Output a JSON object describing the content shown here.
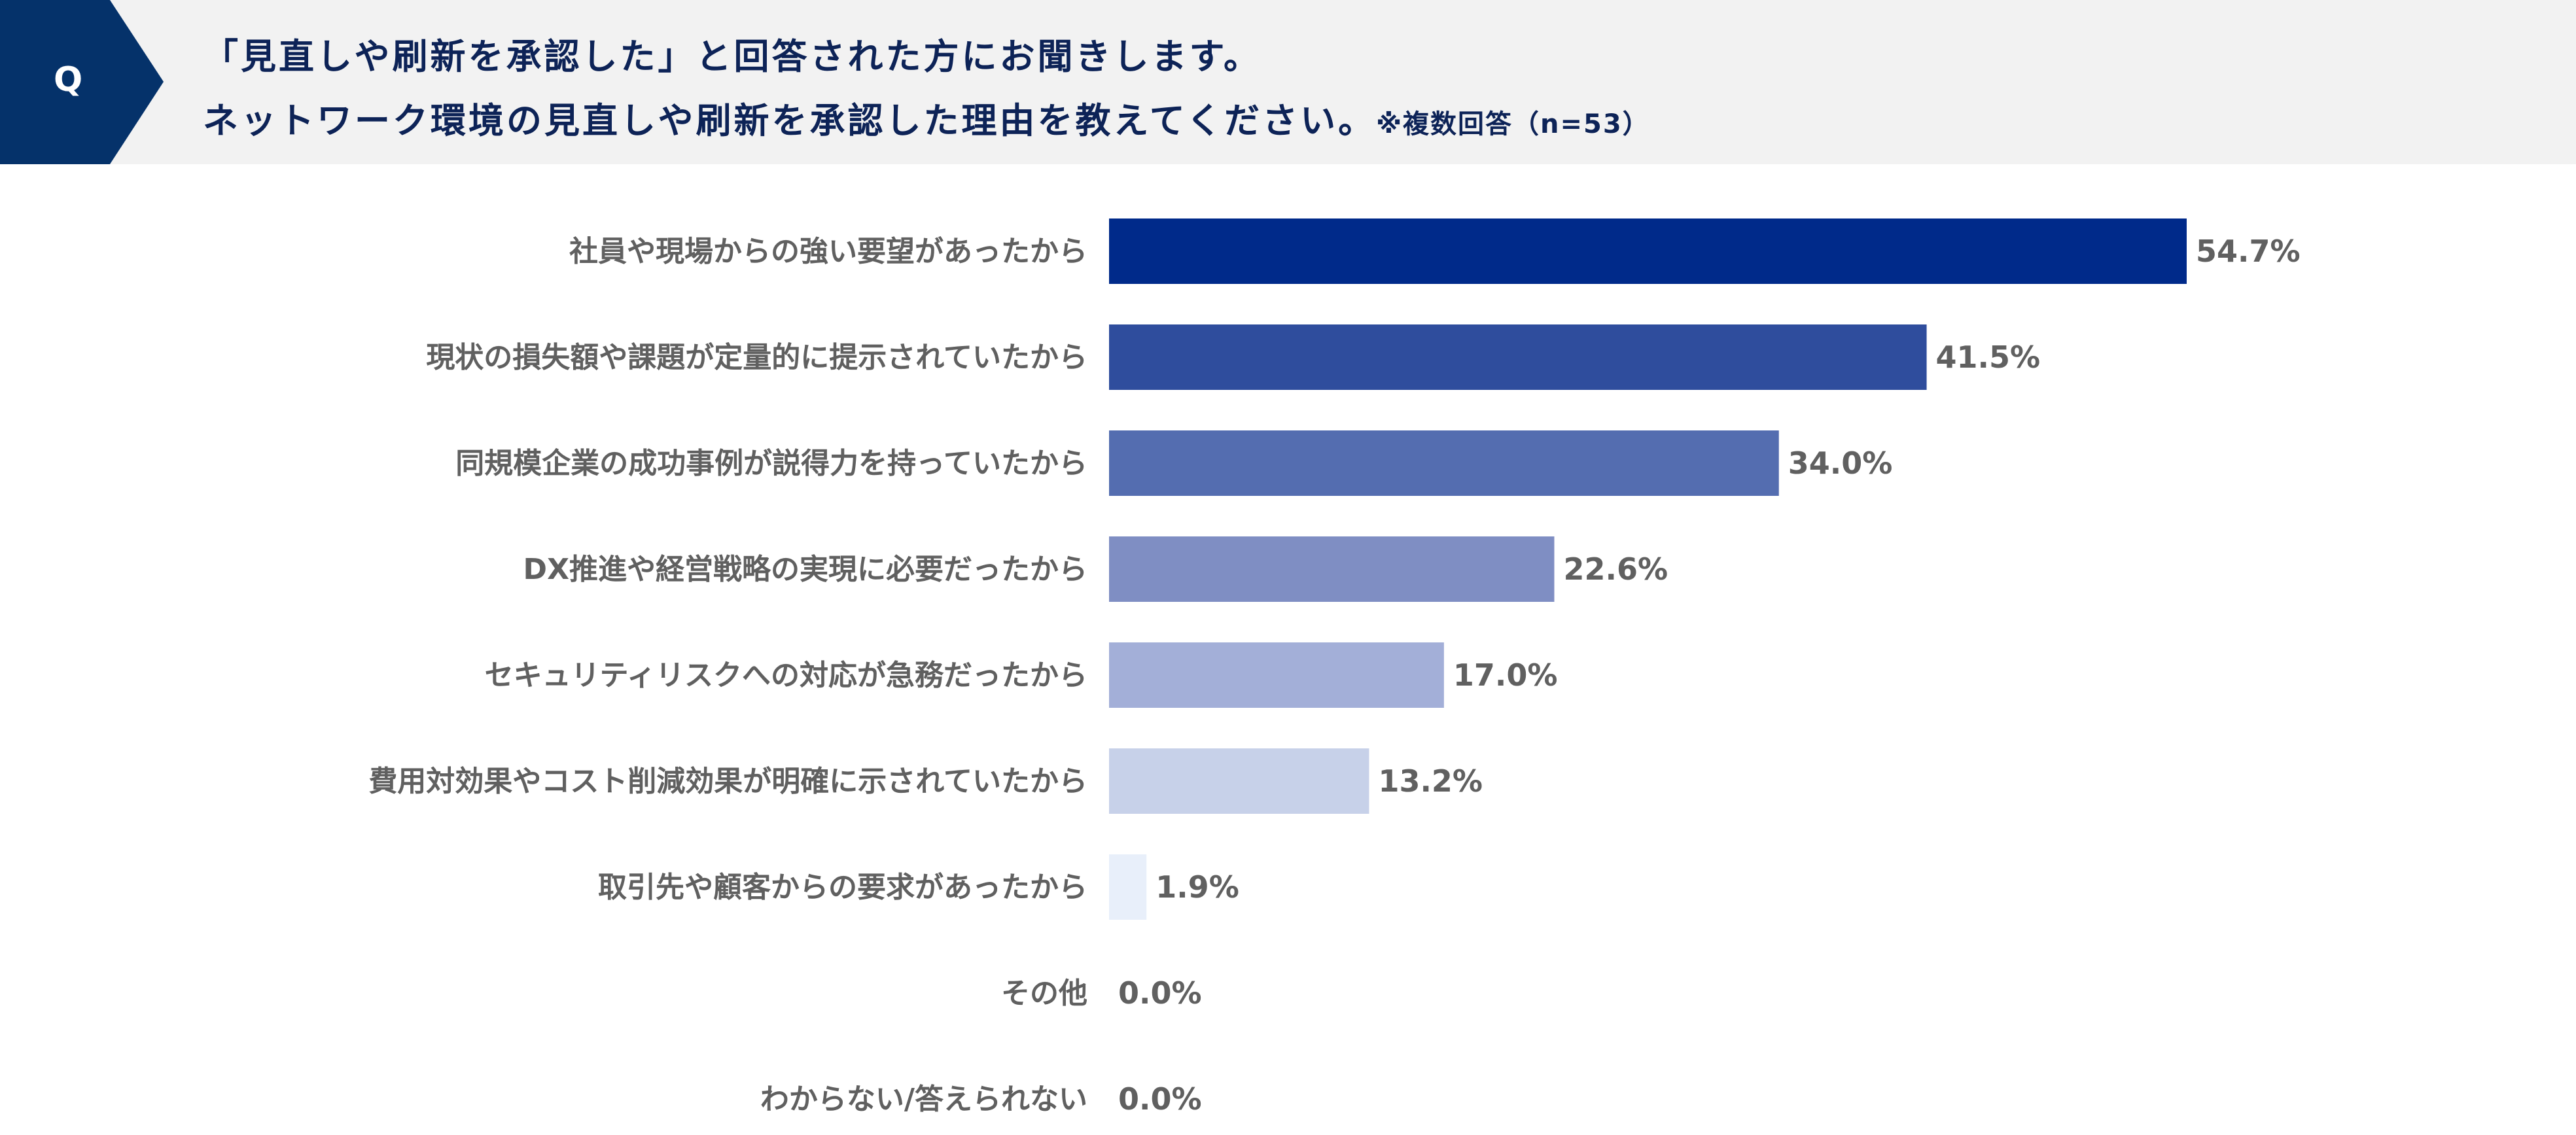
{
  "header": {
    "q_label": "Q",
    "title_line1": "「見直しや刷新を承認した」と回答された方にお聞きします。",
    "title_line2": "ネットワーク環境の見直しや刷新を承認した理由を教えてください。",
    "note": "※複数回答（n=53）"
  },
  "chart_data": {
    "type": "bar",
    "orientation": "horizontal",
    "categories": [
      "社員や現場からの強い要望があったから",
      "現状の損失額や課題が定量的に提示されていたから",
      "同規模企業の成功事例が説得力を持っていたから",
      "DX推進や経営戦略の実現に必要だったから",
      "セキュリティリスクへの対応が急務だったから",
      "費用対効果やコスト削減効果が明確に示されていたから",
      "取引先や顧客からの要求があったから",
      "その他",
      "わからない/答えられない"
    ],
    "values": [
      54.7,
      41.5,
      34.0,
      22.6,
      17.0,
      13.2,
      1.9,
      0.0,
      0.0
    ],
    "value_labels": [
      "54.7%",
      "41.5%",
      "34.0%",
      "22.6%",
      "17.0%",
      "13.2%",
      "1.9%",
      "0.0%",
      "0.0%"
    ],
    "colors": [
      "#002a8a",
      "#2f4d9d",
      "#546db0",
      "#7f8ec3",
      "#a3afd8",
      "#c7d1e9",
      "#e8effa",
      "#e8effa",
      "#e8effa"
    ],
    "unit": "%",
    "xlim": [
      0,
      100
    ],
    "grid": false
  }
}
